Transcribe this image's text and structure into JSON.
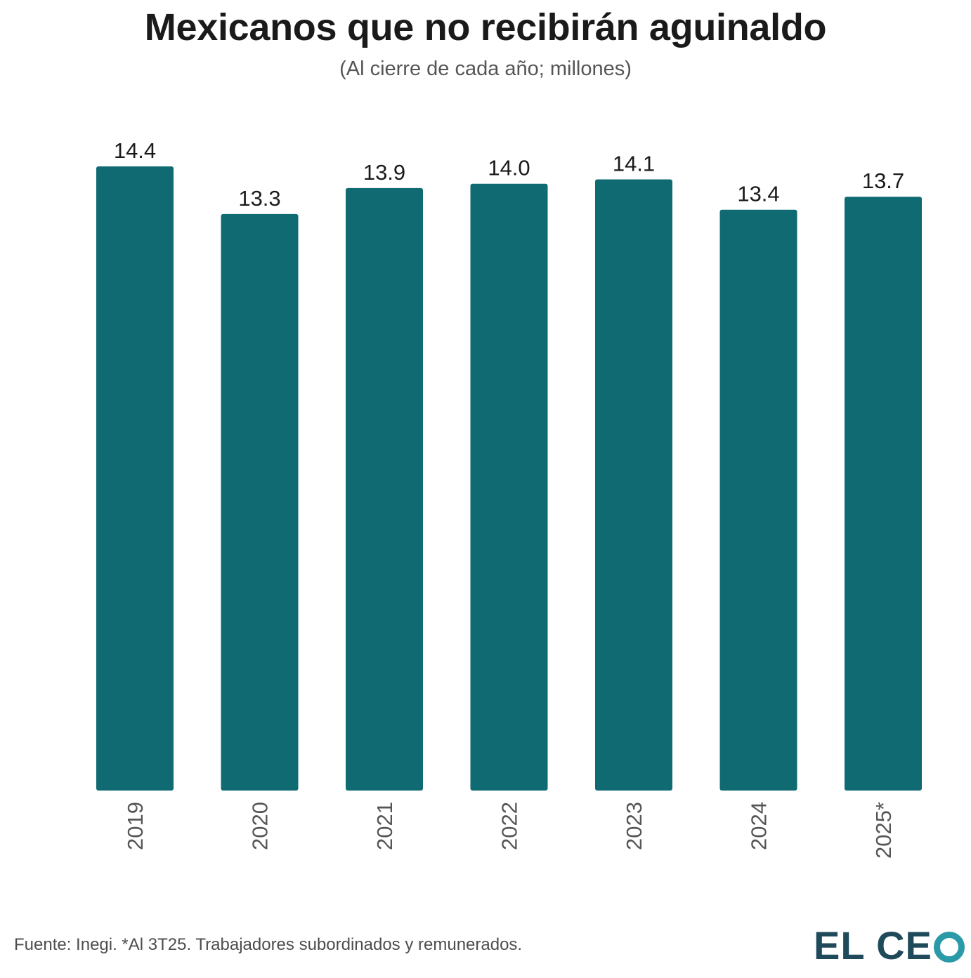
{
  "chart_data": {
    "type": "bar",
    "title": "Mexicanos que no recibirán aguinaldo",
    "subtitle": "(Al cierre de cada año; millones)",
    "categories": [
      "2019",
      "2020",
      "2021",
      "2022",
      "2023",
      "2024",
      "2025*"
    ],
    "values": [
      14.4,
      13.3,
      13.9,
      14.0,
      14.1,
      13.4,
      13.7
    ],
    "value_labels": [
      "14.4",
      "13.3",
      "13.9",
      "14.0",
      "14.1",
      "13.4",
      "13.7"
    ],
    "xlabel": "",
    "ylabel": "",
    "ylim": [
      0,
      14.4
    ],
    "grid": false,
    "legend": "none"
  },
  "colors": {
    "bar": "#0f6a72",
    "logo_text": "#1e4a5a",
    "logo_ring": "#2a9aa8"
  },
  "footer": {
    "source": "Fuente: Inegi. *Al 3T25. Trabajadores subordinados y remunerados."
  },
  "logo": {
    "text_el": "EL C",
    "text_e": "E",
    "text_o": "O"
  }
}
